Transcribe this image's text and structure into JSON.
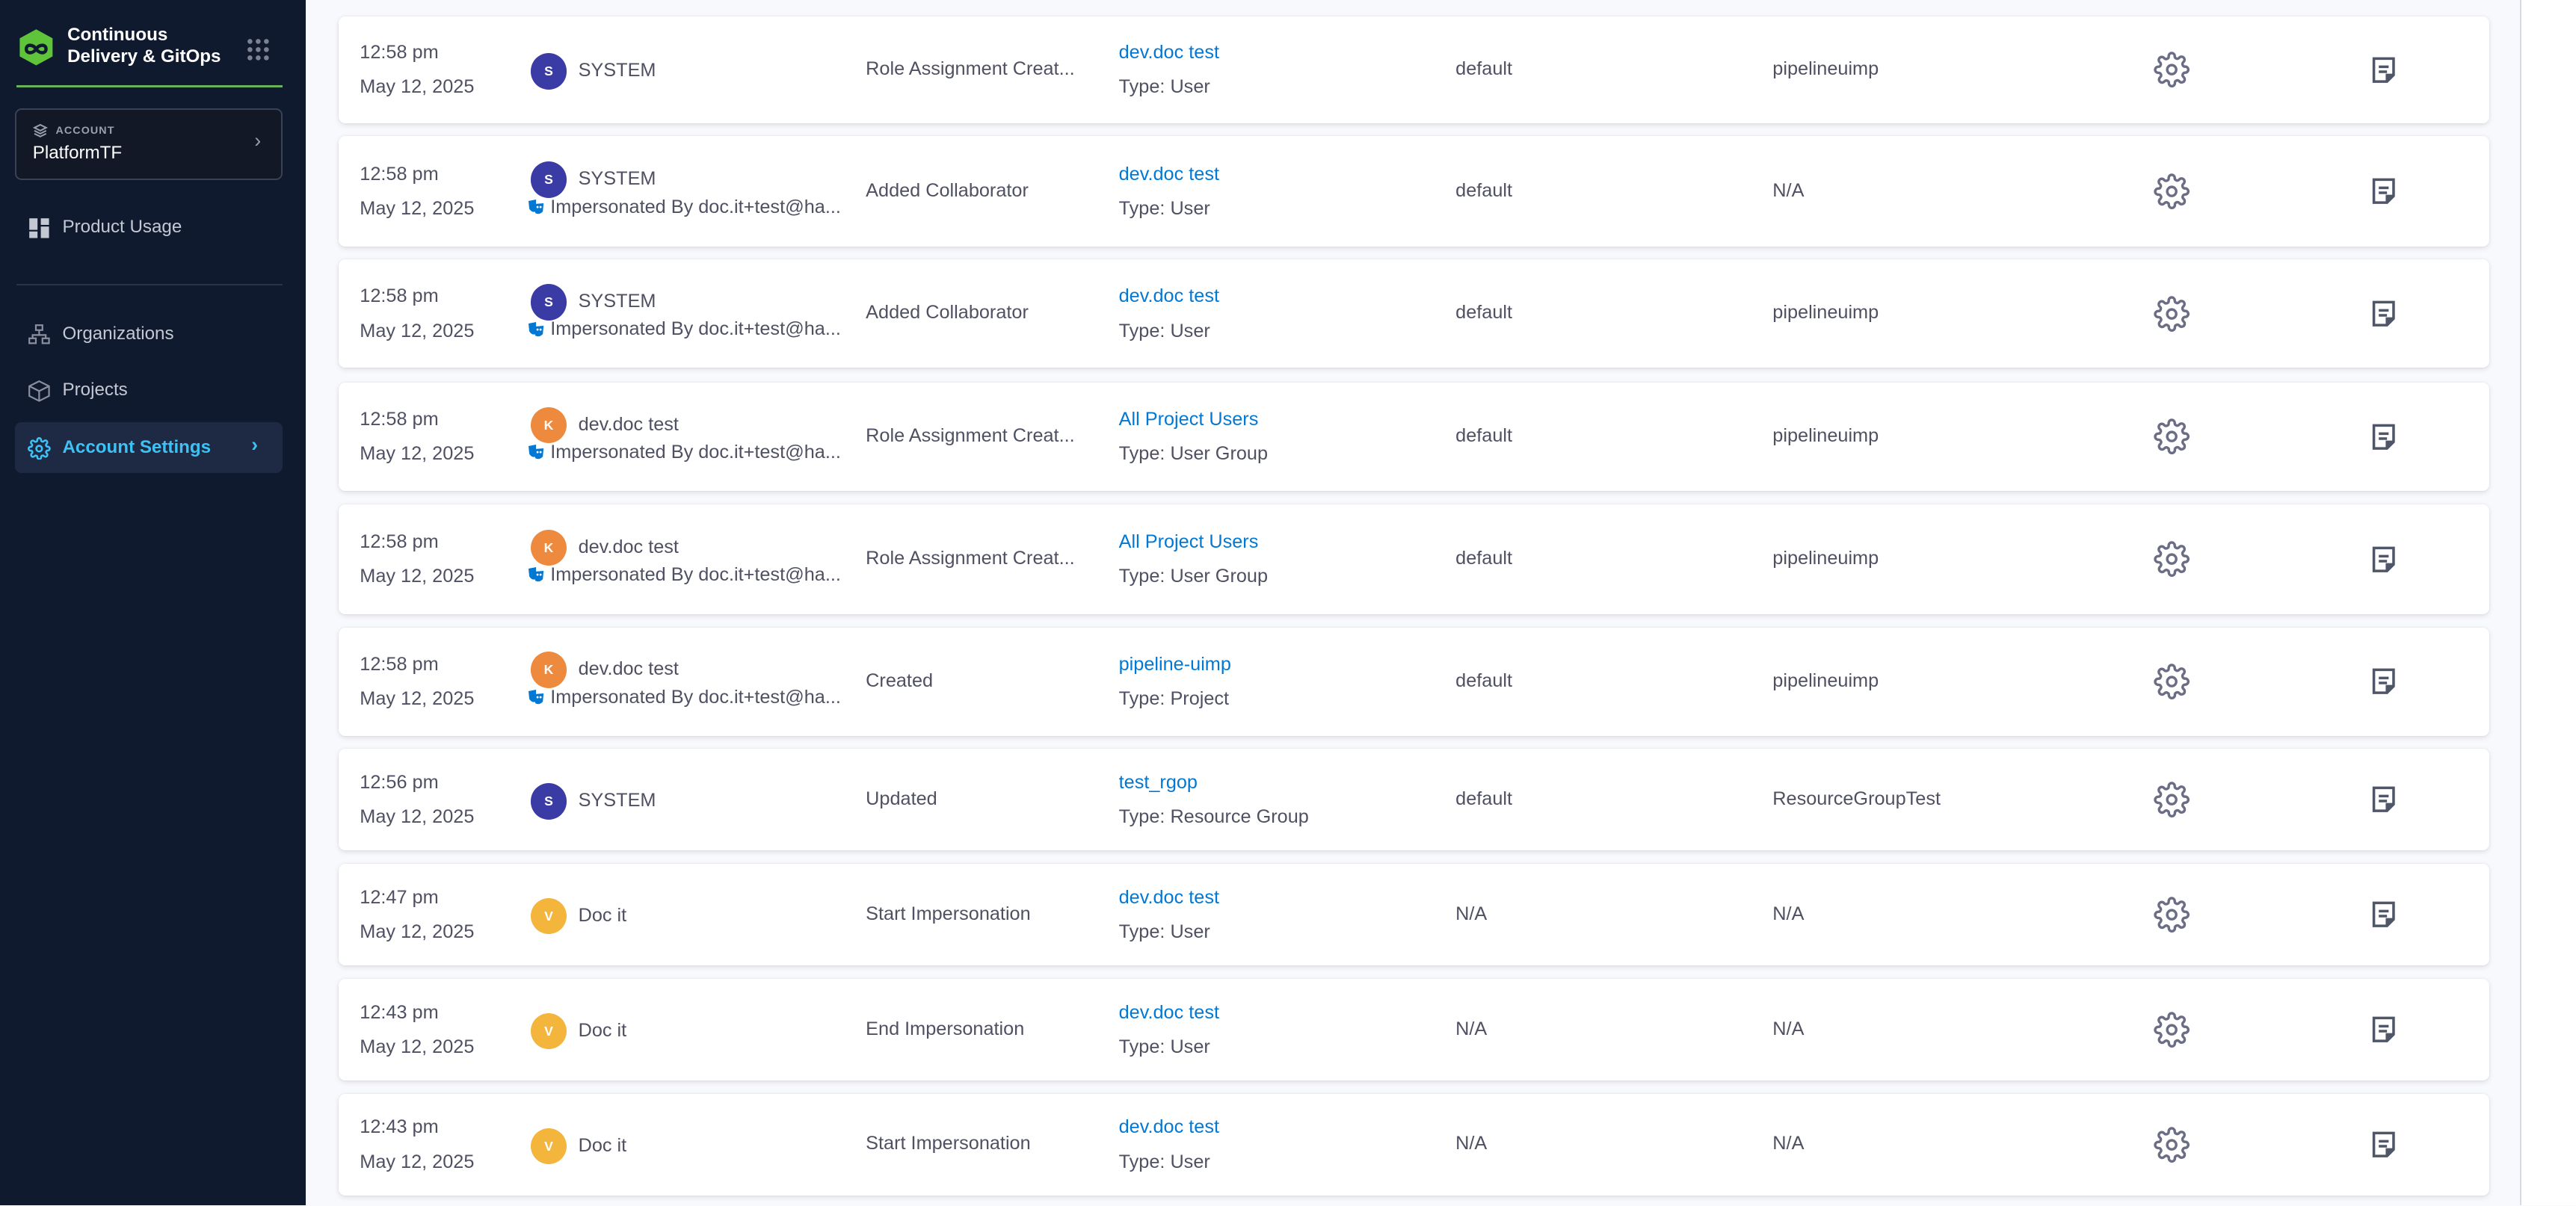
{
  "sidebar": {
    "brand": "Continuous Delivery & GitOps",
    "brand_line1": "Continuous",
    "brand_line2": "Delivery & GitOps",
    "account_label": "ACCOUNT",
    "account_name": "PlatformTF",
    "items": [
      {
        "label": "Product Usage",
        "icon": "dashboard-icon"
      },
      {
        "label": "Organizations",
        "icon": "hierarchy-icon"
      },
      {
        "label": "Projects",
        "icon": "cube-icon"
      },
      {
        "label": "Account Settings",
        "icon": "gear-icon",
        "active": true
      }
    ],
    "accent": "#3ec2f5"
  },
  "audit_rows": [
    {
      "time": "12:58 pm",
      "date": "May 12, 2025",
      "user": "SYSTEM",
      "initial": "S",
      "avatar_color": "#3b3ba5",
      "impersonated": "",
      "action": "Role Assignment Creat...",
      "resource": "dev.doc test",
      "resource_type": "Type: User",
      "organization": "default",
      "project": "pipelineuimp"
    },
    {
      "time": "12:58 pm",
      "date": "May 12, 2025",
      "user": "SYSTEM",
      "initial": "S",
      "avatar_color": "#3b3ba5",
      "impersonated": "Impersonated By doc.it+test@ha...",
      "action": "Added Collaborator",
      "resource": "dev.doc test",
      "resource_type": "Type: User",
      "organization": "default",
      "project": "N/A"
    },
    {
      "time": "12:58 pm",
      "date": "May 12, 2025",
      "user": "SYSTEM",
      "initial": "S",
      "avatar_color": "#3b3ba5",
      "impersonated": "Impersonated By doc.it+test@ha...",
      "action": "Added Collaborator",
      "resource": "dev.doc test",
      "resource_type": "Type: User",
      "organization": "default",
      "project": "pipelineuimp"
    },
    {
      "time": "12:58 pm",
      "date": "May 12, 2025",
      "user": "dev.doc test",
      "initial": "K",
      "avatar_color": "#ee8a3e",
      "impersonated": "Impersonated By doc.it+test@ha...",
      "action": "Role Assignment Creat...",
      "resource": "All Project Users",
      "resource_type": "Type: User Group",
      "organization": "default",
      "project": "pipelineuimp"
    },
    {
      "time": "12:58 pm",
      "date": "May 12, 2025",
      "user": "dev.doc test",
      "initial": "K",
      "avatar_color": "#ee8a3e",
      "impersonated": "Impersonated By doc.it+test@ha...",
      "action": "Role Assignment Creat...",
      "resource": "All Project Users",
      "resource_type": "Type: User Group",
      "organization": "default",
      "project": "pipelineuimp"
    },
    {
      "time": "12:58 pm",
      "date": "May 12, 2025",
      "user": "dev.doc test",
      "initial": "K",
      "avatar_color": "#ee8a3e",
      "impersonated": "Impersonated By doc.it+test@ha...",
      "action": "Created",
      "resource": "pipeline-uimp",
      "resource_type": "Type: Project",
      "organization": "default",
      "project": "pipelineuimp"
    },
    {
      "time": "12:56 pm",
      "date": "May 12, 2025",
      "user": "SYSTEM",
      "initial": "S",
      "avatar_color": "#3b3ba5",
      "impersonated": "",
      "action": "Updated",
      "resource": "test_rgop",
      "resource_type": "Type: Resource Group",
      "organization": "default",
      "project": "ResourceGroupTest"
    },
    {
      "time": "12:47 pm",
      "date": "May 12, 2025",
      "user": "Doc it",
      "initial": "V",
      "avatar_color": "#f3b53b",
      "impersonated": "",
      "action": "Start Impersonation",
      "resource": "dev.doc test",
      "resource_type": "Type: User",
      "organization": "N/A",
      "project": "N/A"
    },
    {
      "time": "12:43 pm",
      "date": "May 12, 2025",
      "user": "Doc it",
      "initial": "V",
      "avatar_color": "#f3b53b",
      "impersonated": "",
      "action": "End Impersonation",
      "resource": "dev.doc test",
      "resource_type": "Type: User",
      "organization": "N/A",
      "project": "N/A"
    },
    {
      "time": "12:43 pm",
      "date": "May 12, 2025",
      "user": "Doc it",
      "initial": "V",
      "avatar_color": "#f3b53b",
      "impersonated": "",
      "action": "Start Impersonation",
      "resource": "dev.doc test",
      "resource_type": "Type: User",
      "organization": "N/A",
      "project": "N/A"
    }
  ]
}
